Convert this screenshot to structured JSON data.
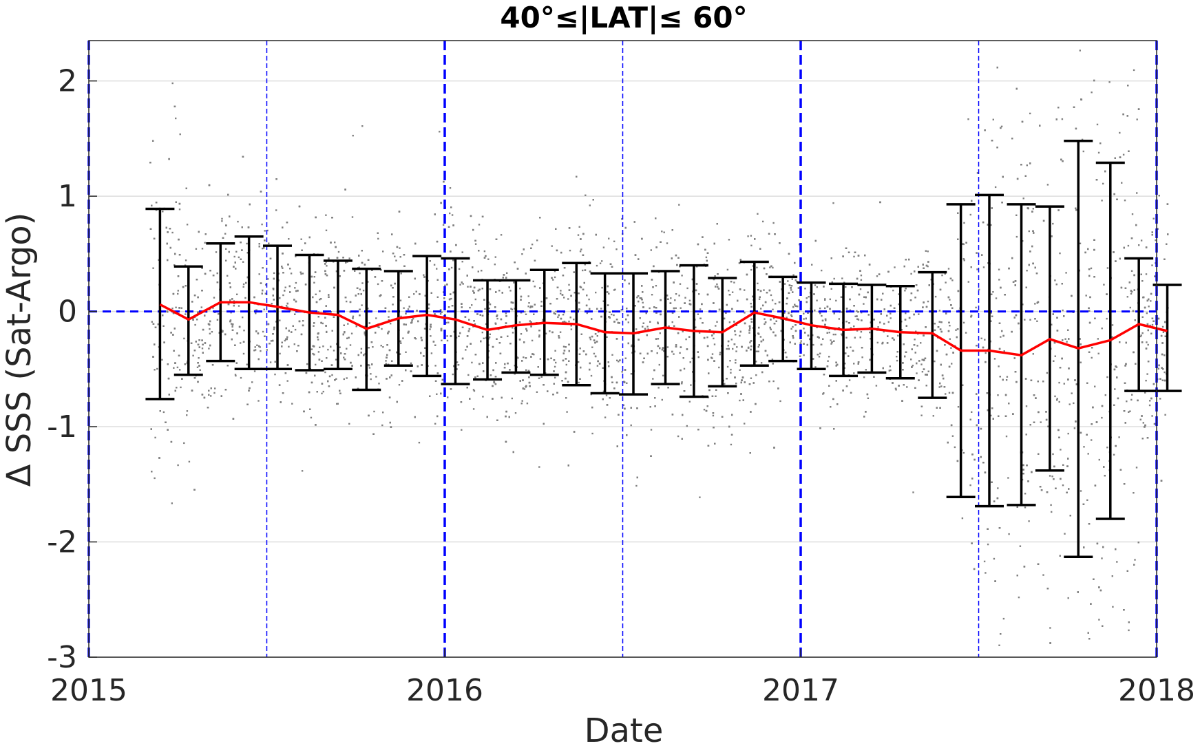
{
  "chart_data": {
    "type": "scatter",
    "title": "40°≤|LAT|≤ 60°",
    "xlabel": "Date",
    "ylabel": "Δ SSS (Sat-Argo)",
    "xlim": [
      2015,
      2018
    ],
    "ylim": [
      -3,
      2.35
    ],
    "xticks": [
      "2015",
      "2016",
      "2017",
      "2018"
    ],
    "yticks": [
      "-3",
      "-2",
      "-1",
      "0",
      "1",
      "2"
    ],
    "grid": true,
    "legend": "none",
    "colors": {
      "scatter": "#808080",
      "mean_line": "#ff0000",
      "error_bars": "#000000",
      "reference_lines": "#0000ff"
    },
    "reference_lines": {
      "horizontal_y": 0,
      "year_boundaries_x": [
        2015,
        2016,
        2017,
        2018
      ],
      "half_year_x": [
        2015.5,
        2016.5,
        2017.5
      ]
    },
    "series": [
      {
        "style": "red line with black error bars",
        "x": [
          2015.2,
          2015.28,
          2015.37,
          2015.45,
          2015.53,
          2015.62,
          2015.7,
          2015.78,
          2015.87,
          2015.95,
          2016.03,
          2016.12,
          2016.2,
          2016.28,
          2016.37,
          2016.45,
          2016.53,
          2016.62,
          2016.7,
          2016.78,
          2016.87,
          2016.95,
          2017.03,
          2017.12,
          2017.2,
          2017.28,
          2017.37,
          2017.45,
          2017.53,
          2017.62,
          2017.7,
          2017.78,
          2017.87,
          2017.95,
          2018.03
        ],
        "mean": [
          0.06,
          -0.07,
          0.08,
          0.08,
          0.04,
          -0.01,
          -0.03,
          -0.15,
          -0.06,
          -0.03,
          -0.07,
          -0.16,
          -0.12,
          -0.1,
          -0.11,
          -0.18,
          -0.19,
          -0.14,
          -0.17,
          -0.18,
          -0.01,
          -0.06,
          -0.12,
          -0.16,
          -0.15,
          -0.18,
          -0.19,
          -0.34,
          -0.34,
          -0.38,
          -0.24,
          -0.32,
          -0.25,
          -0.11,
          -0.17
        ],
        "upper": [
          0.89,
          0.39,
          0.59,
          0.65,
          0.57,
          0.49,
          0.44,
          0.37,
          0.35,
          0.48,
          0.46,
          0.27,
          0.27,
          0.36,
          0.42,
          0.33,
          0.33,
          0.35,
          0.4,
          0.29,
          0.43,
          0.3,
          0.25,
          0.24,
          0.23,
          0.22,
          0.34,
          0.93,
          1.01,
          0.93,
          0.91,
          1.48,
          1.29,
          0.46,
          0.23
        ],
        "lower": [
          -0.76,
          -0.55,
          -0.43,
          -0.5,
          -0.5,
          -0.51,
          -0.5,
          -0.68,
          -0.47,
          -0.56,
          -0.63,
          -0.59,
          -0.53,
          -0.55,
          -0.64,
          -0.71,
          -0.72,
          -0.63,
          -0.74,
          -0.65,
          -0.47,
          -0.43,
          -0.5,
          -0.56,
          -0.53,
          -0.58,
          -0.75,
          -1.61,
          -1.69,
          -1.68,
          -1.38,
          -2.13,
          -1.8,
          -0.69,
          -0.69
        ]
      }
    ]
  }
}
